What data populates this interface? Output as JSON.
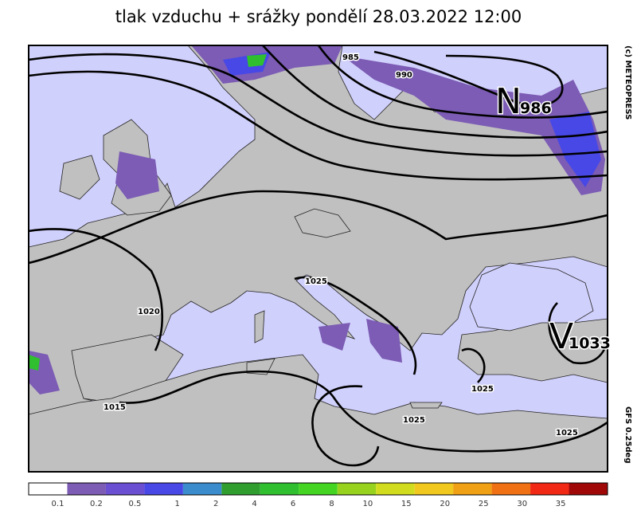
{
  "title": "tlak vzduchu + srážky pondělí 28.03.2022 12:00",
  "credit": "(c) METEOPRESS",
  "model": "GFS 0.25deg",
  "isobar_labels": [
    "985",
    "990",
    "1025",
    "1020",
    "1015",
    "1025",
    "1025",
    "1025"
  ],
  "pressure_centers": [
    {
      "letter": "N",
      "value": "986"
    },
    {
      "letter": "V",
      "value": "1033"
    }
  ],
  "legend": {
    "colors": [
      "#ffffff",
      "#7c5cb4",
      "#6a4fd2",
      "#4848e6",
      "#3a8ccc",
      "#2f9e2f",
      "#2fbf2f",
      "#44d422",
      "#96d21e",
      "#d2dc1e",
      "#f0c81e",
      "#f0a014",
      "#f07014",
      "#f02814",
      "#a00808"
    ],
    "labels": [
      "0.1",
      "0.2",
      "0.5",
      "1",
      "2",
      "4",
      "6",
      "8",
      "10",
      "15",
      "20",
      "25",
      "30",
      "35"
    ]
  }
}
